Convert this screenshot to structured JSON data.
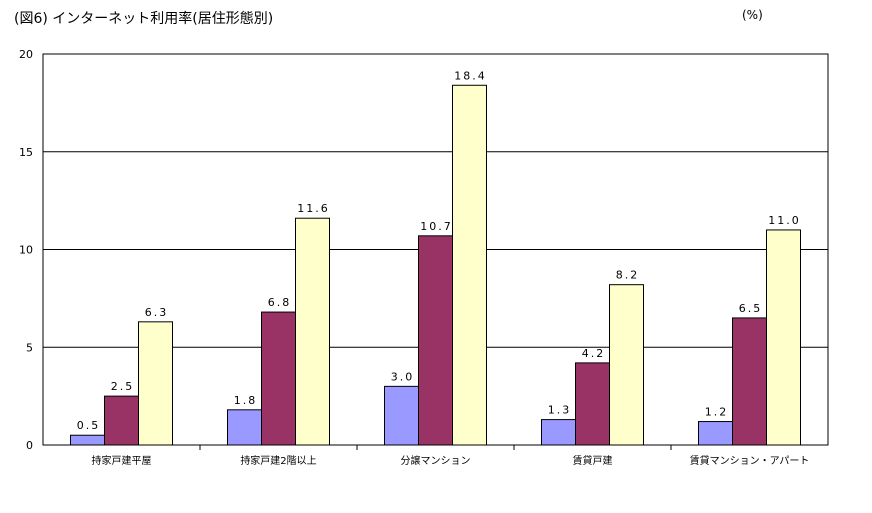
{
  "header": {
    "title": "(図6) インターネット利用率(居住形態別)",
    "unit": "(%)"
  },
  "chart_data": {
    "type": "bar",
    "title": "(図6) インターネット利用率(居住形態別)",
    "unit": "(%)",
    "categories": [
      "持家戸建平屋",
      "持家戸建2階以上",
      "分譲マンション",
      "賃貸戸建",
      "賃貸マンション・アパート"
    ],
    "series": [
      {
        "values": [
          0.5,
          1.8,
          3.0,
          1.3,
          1.2
        ],
        "color": "#9999ff"
      },
      {
        "values": [
          2.5,
          6.8,
          10.7,
          4.2,
          6.5
        ],
        "color": "#993366"
      },
      {
        "values": [
          6.3,
          11.6,
          18.4,
          8.2,
          11.0
        ],
        "color": "#ffffcc"
      }
    ],
    "data_labels": [
      [
        "0.5",
        "1.8",
        "3.0",
        "1.3",
        "1.2"
      ],
      [
        "2.5",
        "6.8",
        "10.7",
        "4.2",
        "6.5"
      ],
      [
        "6.3",
        "11.6",
        "18.4",
        "8.2",
        "11.0"
      ]
    ],
    "yticks": [
      "0",
      "5",
      "10",
      "15",
      "20"
    ],
    "ylim": [
      0,
      20
    ],
    "grid": true,
    "legend": "none"
  }
}
